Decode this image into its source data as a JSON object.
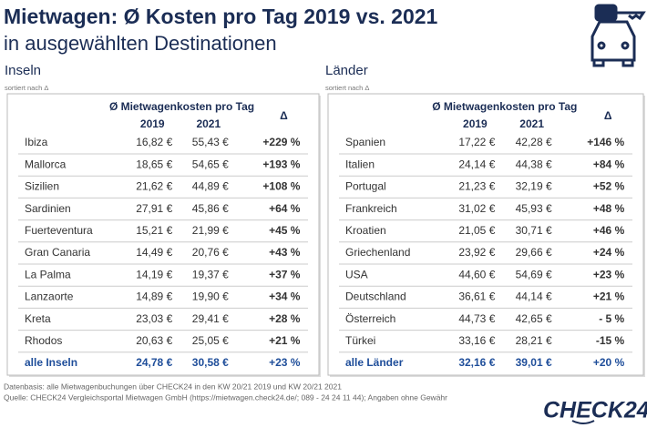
{
  "header": {
    "title": "Mietwagen: Ø Kosten pro Tag 2019 vs. 2021",
    "subtitle": "in ausgewählten Destinationen"
  },
  "islands": {
    "heading": "Inseln",
    "sort_note": "sortiert nach Δ",
    "columns": {
      "group": "Ø Mietwagenkosten pro Tag",
      "col_a": "2019",
      "col_b": "2021",
      "delta": "Δ"
    },
    "rows": [
      [
        "Ibiza",
        "16,82 €",
        "55,43 €",
        "+229 %"
      ],
      [
        "Mallorca",
        "18,65 €",
        "54,65 €",
        "+193 %"
      ],
      [
        "Sizilien",
        "21,62 €",
        "44,89 €",
        "+108 %"
      ],
      [
        "Sardinien",
        "27,91 €",
        "45,86 €",
        "+64 %"
      ],
      [
        "Fuerteventura",
        "15,21 €",
        "21,99 €",
        "+45 %"
      ],
      [
        "Gran Canaria",
        "14,49 €",
        "20,76 €",
        "+43 %"
      ],
      [
        "La Palma",
        "14,19 €",
        "19,37 €",
        "+37 %"
      ],
      [
        "Lanzaorte",
        "14,89 €",
        "19,90 €",
        "+34 %"
      ],
      [
        "Kreta",
        "23,03 €",
        "29,41 €",
        "+28 %"
      ],
      [
        "Rhodos",
        "20,63 €",
        "25,05 €",
        "+21 %"
      ]
    ],
    "total": [
      "alle Inseln",
      "24,78 €",
      "30,58 €",
      "+23 %"
    ]
  },
  "countries": {
    "heading": "Länder",
    "sort_note": "sortiert nach Δ",
    "columns": {
      "group": "Ø Mietwagenkosten pro Tag",
      "col_a": "2019",
      "col_b": "2021",
      "delta": "Δ"
    },
    "rows": [
      [
        "Spanien",
        "17,22 €",
        "42,28 €",
        "+146 %"
      ],
      [
        "Italien",
        "24,14 €",
        "44,38 €",
        "+84 %"
      ],
      [
        "Portugal",
        "21,23 €",
        "32,19 €",
        "+52 %"
      ],
      [
        "Frankreich",
        "31,02 €",
        "45,93 €",
        "+48 %"
      ],
      [
        "Kroatien",
        "21,05 €",
        "30,71 €",
        "+46 %"
      ],
      [
        "Griechenland",
        "23,92 €",
        "29,66 €",
        "+24 %"
      ],
      [
        "USA",
        "44,60 €",
        "54,69 €",
        "+23 %"
      ],
      [
        "Deutschland",
        "36,61 €",
        "44,14 €",
        "+21 %"
      ],
      [
        "Österreich",
        "44,73 €",
        "42,65 €",
        "- 5 %"
      ],
      [
        "Türkei",
        "33,16 €",
        "28,21 €",
        "-15 %"
      ]
    ],
    "total": [
      "alle Länder",
      "32,16 €",
      "39,01 €",
      "+20 %"
    ]
  },
  "footer": {
    "source_1": "Datenbasis: alle Mietwagenbuchungen über CHECK24 in den KW 20/21 2019 und KW 20/21 2021",
    "source_2": "Quelle: CHECK24 Vergleichsportal Mietwagen GmbH (https://mietwagen.check24.de/; 089 - 24 24 11 44); Angaben ohne Gewähr",
    "logo": "CHECK24"
  }
}
